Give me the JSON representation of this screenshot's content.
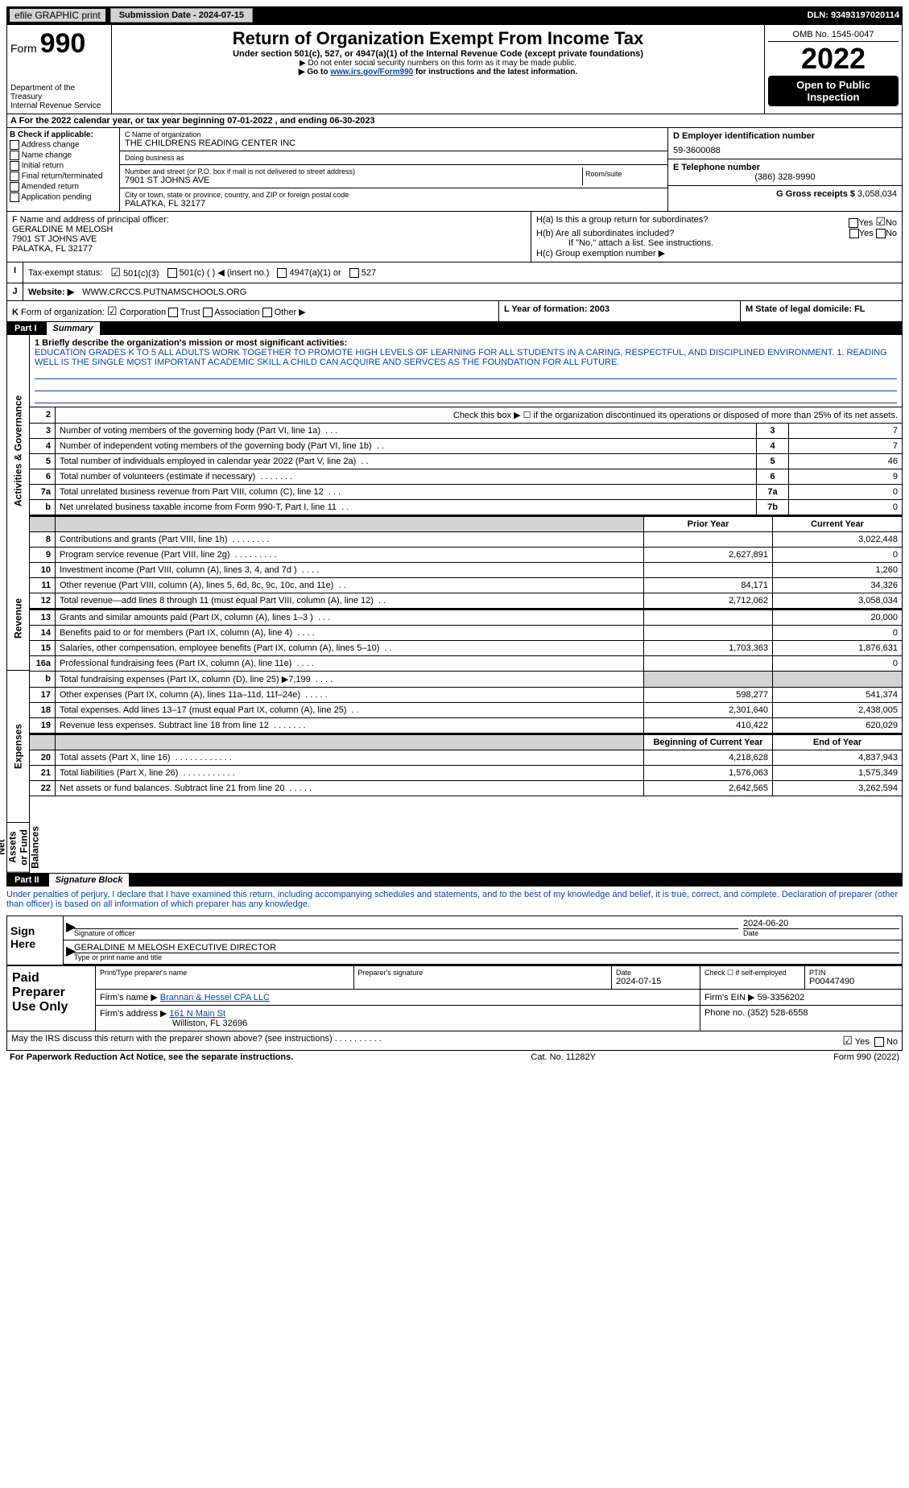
{
  "top_bar": {
    "efile": "efile GRAPHIC print",
    "submission": "Submission Date - 2024-07-15",
    "dln": "DLN: 93493197020114"
  },
  "header": {
    "form_prefix": "Form",
    "form_num": "990",
    "title": "Return of Organization Exempt From Income Tax",
    "subtitle": "Under section 501(c), 527, or 4947(a)(1) of the Internal Revenue Code (except private foundations)",
    "warn": "▶ Do not enter social security numbers on this form as it may be made public.",
    "goto_pre": "▶ Go to ",
    "goto_link": "www.irs.gov/Form990",
    "goto_post": " for instructions and the latest information.",
    "dept1": "Department of the Treasury",
    "dept2": "Internal Revenue Service",
    "omb": "OMB No. 1545-0047",
    "year": "2022",
    "open": "Open to Public Inspection"
  },
  "row_a": "A For the 2022 calendar year, or tax year beginning 07-01-2022    , and ending 06-30-2023",
  "section_b": {
    "b_label": "B Check if applicable:",
    "checks": [
      "Address change",
      "Name change",
      "Initial return",
      "Final return/terminated",
      "Amended return",
      "Application pending"
    ],
    "c_label": "C Name of organization",
    "c_val": "THE CHILDRENS READING CENTER INC",
    "dba_label": "Doing business as",
    "dba_val": "",
    "street_label": "Number and street (or P.O. box if mail is not delivered to street address)",
    "street_val": "7901 ST JOHNS AVE",
    "room_label": "Room/suite",
    "city_label": "City or town, state or province, country, and ZIP or foreign postal code",
    "city_val": "PALATKA, FL  32177",
    "d_label": "D Employer identification number",
    "d_val": "59-3600088",
    "e_label": "E Telephone number",
    "e_val": "(386) 328-9990",
    "g_label": "G Gross receipts $",
    "g_val": "3,058,034"
  },
  "section_fh": {
    "f_label": "F  Name and address of principal officer:",
    "f_name": "GERALDINE M MELOSH",
    "f_addr1": "7901 ST JOHNS AVE",
    "f_addr2": "PALATKA, FL  32177",
    "ha": "H(a)  Is this a group return for subordinates?",
    "hb": "H(b)  Are all subordinates included?",
    "hb_note": "If \"No,\" attach a list. See instructions.",
    "hc": "H(c)  Group exemption number ▶",
    "yes": "Yes",
    "no": "No"
  },
  "row_i": {
    "label": "I",
    "title": "Tax-exempt status:",
    "o1": "501(c)(3)",
    "o2": "501(c) (   ) ◀ (insert no.)",
    "o3": "4947(a)(1) or",
    "o4": "527"
  },
  "row_j": {
    "label": "J",
    "title": "Website: ▶",
    "val": "WWW.CRCCS.PUTNAMSCHOOLS.ORG"
  },
  "row_k": {
    "label": "K",
    "title": "Form of organization:",
    "o1": "Corporation",
    "o2": "Trust",
    "o3": "Association",
    "o4": "Other ▶"
  },
  "row_l": {
    "label": "L Year of formation: 2003"
  },
  "row_m": {
    "label": "M State of legal domicile: FL"
  },
  "part1": {
    "p": "Part I",
    "t": "Summary"
  },
  "mission": {
    "label": "1  Briefly describe the organization's mission or most significant activities:",
    "text": "EDUCATION GRADES K TO 5 ALL ADULTS WORK TOGETHER TO PROMOTE HIGH LEVELS OF LEARNING FOR ALL STUDENTS IN A CARING, RESPECTFUL, AND DISCIPLINED ENVIRONMENT. 1. READING WELL IS THE SINGLE MOST IMPORTANT ACADEMIC SKILL A CHILD CAN ACQUIRE AND SERVCES AS THE FOUNDATION FOR ALL FUTURE."
  },
  "gov_rows": [
    {
      "n": "2",
      "t": "Check this box ▶ ☐  if the organization discontinued its operations or disposed of more than 25% of its net assets.",
      "box": "",
      "v": ""
    },
    {
      "n": "3",
      "t": "Number of voting members of the governing body (Part VI, line 1a)",
      "box": "3",
      "v": "7"
    },
    {
      "n": "4",
      "t": "Number of independent voting members of the governing body (Part VI, line 1b)",
      "box": "4",
      "v": "7"
    },
    {
      "n": "5",
      "t": "Total number of individuals employed in calendar year 2022 (Part V, line 2a)",
      "box": "5",
      "v": "46"
    },
    {
      "n": "6",
      "t": "Total number of volunteers (estimate if necessary)",
      "box": "6",
      "v": "9"
    },
    {
      "n": "7a",
      "t": "Total unrelated business revenue from Part VIII, column (C), line 12",
      "box": "7a",
      "v": "0"
    },
    {
      "n": "b",
      "t": "Net unrelated business taxable income from Form 990-T, Part I, line 11",
      "box": "7b",
      "v": "0"
    }
  ],
  "col_headers": {
    "prior": "Prior Year",
    "current": "Current Year",
    "beg": "Beginning of Current Year",
    "end": "End of Year"
  },
  "revenue_rows": [
    {
      "n": "8",
      "t": "Contributions and grants (Part VIII, line 1h)",
      "p": "",
      "c": "3,022,448"
    },
    {
      "n": "9",
      "t": "Program service revenue (Part VIII, line 2g)",
      "p": "2,627,891",
      "c": "0"
    },
    {
      "n": "10",
      "t": "Investment income (Part VIII, column (A), lines 3, 4, and 7d )",
      "p": "",
      "c": "1,260"
    },
    {
      "n": "11",
      "t": "Other revenue (Part VIII, column (A), lines 5, 6d, 8c, 9c, 10c, and 11e)",
      "p": "84,171",
      "c": "34,326"
    },
    {
      "n": "12",
      "t": "Total revenue—add lines 8 through 11 (must equal Part VIII, column (A), line 12)",
      "p": "2,712,062",
      "c": "3,058,034"
    }
  ],
  "expense_rows": [
    {
      "n": "13",
      "t": "Grants and similar amounts paid (Part IX, column (A), lines 1–3 )",
      "p": "",
      "c": "20,000"
    },
    {
      "n": "14",
      "t": "Benefits paid to or for members (Part IX, column (A), line 4)",
      "p": "",
      "c": "0"
    },
    {
      "n": "15",
      "t": "Salaries, other compensation, employee benefits (Part IX, column (A), lines 5–10)",
      "p": "1,703,363",
      "c": "1,876,631"
    },
    {
      "n": "16a",
      "t": "Professional fundraising fees (Part IX, column (A), line 11e)",
      "p": "",
      "c": "0"
    },
    {
      "n": "b",
      "t": "Total fundraising expenses (Part IX, column (D), line 25) ▶7,199",
      "p": "gray",
      "c": "gray"
    },
    {
      "n": "17",
      "t": "Other expenses (Part IX, column (A), lines 11a–11d, 11f–24e)",
      "p": "598,277",
      "c": "541,374"
    },
    {
      "n": "18",
      "t": "Total expenses. Add lines 13–17 (must equal Part IX, column (A), line 25)",
      "p": "2,301,640",
      "c": "2,438,005"
    },
    {
      "n": "19",
      "t": "Revenue less expenses. Subtract line 18 from line 12",
      "p": "410,422",
      "c": "620,029"
    }
  ],
  "net_rows": [
    {
      "n": "20",
      "t": "Total assets (Part X, line 16)",
      "p": "4,218,628",
      "c": "4,837,943"
    },
    {
      "n": "21",
      "t": "Total liabilities (Part X, line 26)",
      "p": "1,576,063",
      "c": "1,575,349"
    },
    {
      "n": "22",
      "t": "Net assets or fund balances. Subtract line 21 from line 20",
      "p": "2,642,565",
      "c": "3,262,594"
    }
  ],
  "tabs": {
    "gov": "Activities & Governance",
    "rev": "Revenue",
    "exp": "Expenses",
    "net": "Net Assets or Fund Balances"
  },
  "part2": {
    "p": "Part II",
    "t": "Signature Block"
  },
  "decl": "Under penalties of perjury, I declare that I have examined this return, including accompanying schedules and statements, and to the best of my knowledge and belief, it is true, correct, and complete. Declaration of preparer (other than officer) is based on all information of which preparer has any knowledge.",
  "sign": {
    "here": "Sign Here",
    "date": "2024-06-20",
    "sig_of": "Signature of officer",
    "date_l": "Date",
    "name": "GERALDINE M MELOSH  EXECUTIVE DIRECTOR",
    "name_l": "Type or print name and title"
  },
  "paid": {
    "title": "Paid Preparer Use Only",
    "h1": "Print/Type preparer's name",
    "h2": "Preparer's signature",
    "h3": "Date",
    "h4": "Check ☐ if self-employed",
    "h5": "PTIN",
    "date": "2024-07-15",
    "ptin": "P00447490",
    "firm_l": "Firm's name   ▶",
    "firm": "Brannan & Hessel CPA LLC",
    "ein_l": "Firm's EIN ▶",
    "ein": "59-3356202",
    "addr_l": "Firm's address ▶",
    "addr1": "161 N Main St",
    "addr2": "Williston, FL  32696",
    "phone_l": "Phone no.",
    "phone": "(352) 528-6558"
  },
  "may_discuss": "May the IRS discuss this return with the preparer shown above? (see instructions)",
  "footer": {
    "l": "For Paperwork Reduction Act Notice, see the separate instructions.",
    "m": "Cat. No. 11282Y",
    "r": "Form 990 (2022)"
  }
}
